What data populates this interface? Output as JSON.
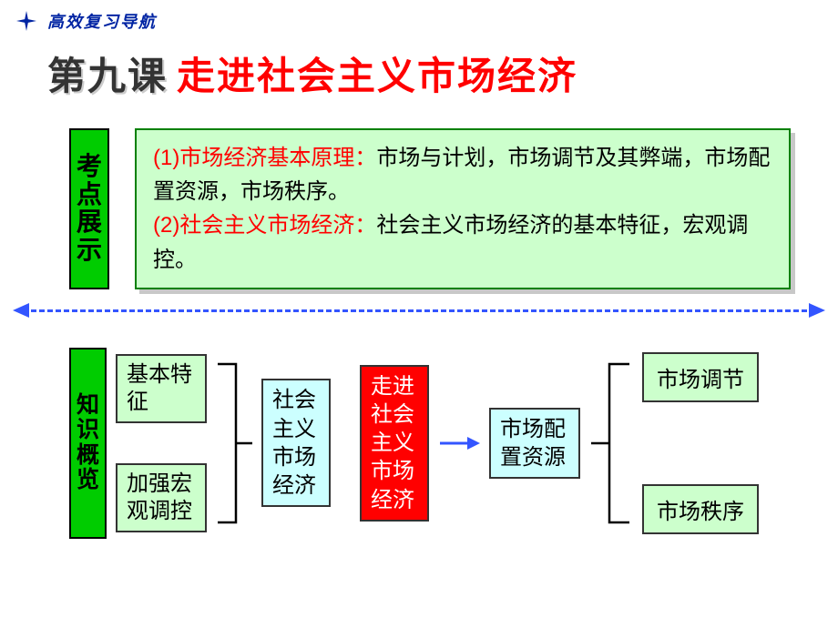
{
  "header": {
    "label": "高效复习导航"
  },
  "title": {
    "lesson_label": "第九课",
    "lesson_title": "走进社会主义市场经济"
  },
  "points": {
    "side_label": "考点展示",
    "line1_red": "(1)市场经济基本原理：",
    "line1_black": "市场与计划，市场调节及其弊端，市场配置资源，市场秩序。",
    "line2_red": "(2)社会主义市场经济：",
    "line2_black": "社会主义市场经济的基本特征，宏观调控。"
  },
  "overview": {
    "side_label": "知识概览",
    "left_top": "基本特征",
    "left_bottom": "加强宏观调控",
    "mid1": "社会主义市场经济",
    "center": "走进社会主义市场经济",
    "mid2": "市场配置资源",
    "right_top": "市场调节",
    "right_bottom": "市场秩序"
  },
  "colors": {
    "header_blue": "#0024a3",
    "title_red": "#ff0000",
    "green_block": "#00cc00",
    "light_green": "#ccffcc",
    "light_blue": "#ccffff",
    "red_block": "#ff0000",
    "dash_blue": "#3355ff"
  }
}
